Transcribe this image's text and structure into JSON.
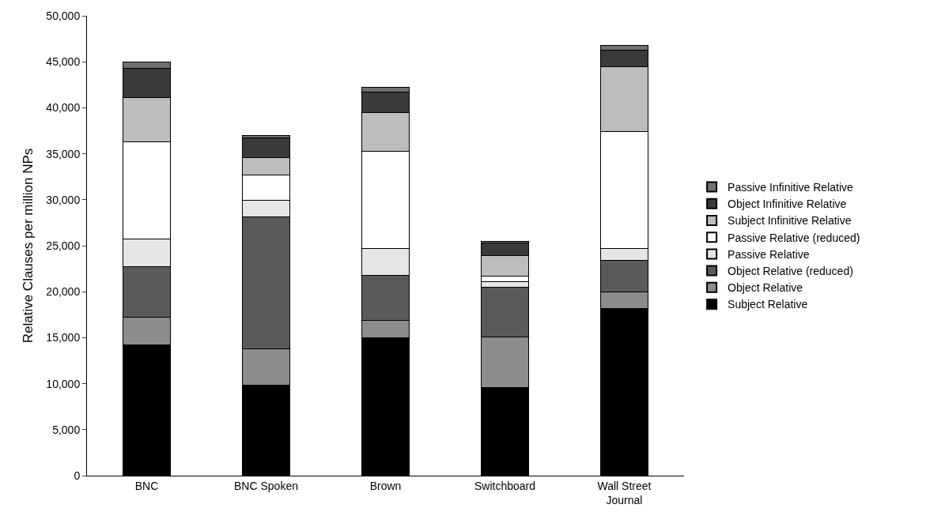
{
  "chart_data": {
    "type": "bar",
    "stacked": true,
    "ylabel": "Relative Clauses per million NPs",
    "categories": [
      "BNC",
      "BNC Spoken",
      "Brown",
      "Switchboard",
      "Wall Street Journal"
    ],
    "series": [
      {
        "name": "Subject Relative",
        "color": "#000000",
        "values": [
          14200,
          9800,
          15000,
          9600,
          18200
        ]
      },
      {
        "name": "Object Relative",
        "color": "#8c8c8c",
        "values": [
          3000,
          4000,
          1900,
          5500,
          1800
        ]
      },
      {
        "name": "Object Relative (reduced)",
        "color": "#5a5a5a",
        "values": [
          5500,
          14300,
          4900,
          5400,
          3400
        ]
      },
      {
        "name": "Passive Relative",
        "color": "#e6e6e6",
        "values": [
          3000,
          1800,
          2900,
          600,
          1300
        ]
      },
      {
        "name": "Passive Relative (reduced)",
        "color": "#ffffff",
        "values": [
          10600,
          2800,
          10600,
          600,
          12700
        ]
      },
      {
        "name": "Subject Infinitive Relative",
        "color": "#bdbdbd",
        "values": [
          4800,
          1900,
          4200,
          2200,
          7100
        ]
      },
      {
        "name": "Object Infinitive Relative",
        "color": "#3a3a3a",
        "values": [
          3200,
          2100,
          2200,
          1400,
          1800
        ]
      },
      {
        "name": "Passive Infinitive Relative",
        "color": "#707070",
        "values": [
          700,
          300,
          500,
          200,
          500
        ]
      }
    ],
    "ylim": [
      0,
      50000
    ],
    "yticks": [
      0,
      {
        "value": 5000,
        "label": "5,000"
      },
      {
        "value": 10000,
        "label": "10,000"
      },
      {
        "value": 15000,
        "label": "15,000"
      },
      {
        "value": 20000,
        "label": "20,000"
      },
      {
        "value": 25000,
        "label": "25,000"
      },
      {
        "value": 30000,
        "label": "30,000"
      },
      {
        "value": 35000,
        "label": "35,000"
      },
      {
        "value": 40000,
        "label": "40,000"
      },
      {
        "value": 45000,
        "label": "45,000"
      },
      {
        "value": 50000,
        "label": "50,000"
      }
    ],
    "grid": false,
    "legend": "right"
  }
}
